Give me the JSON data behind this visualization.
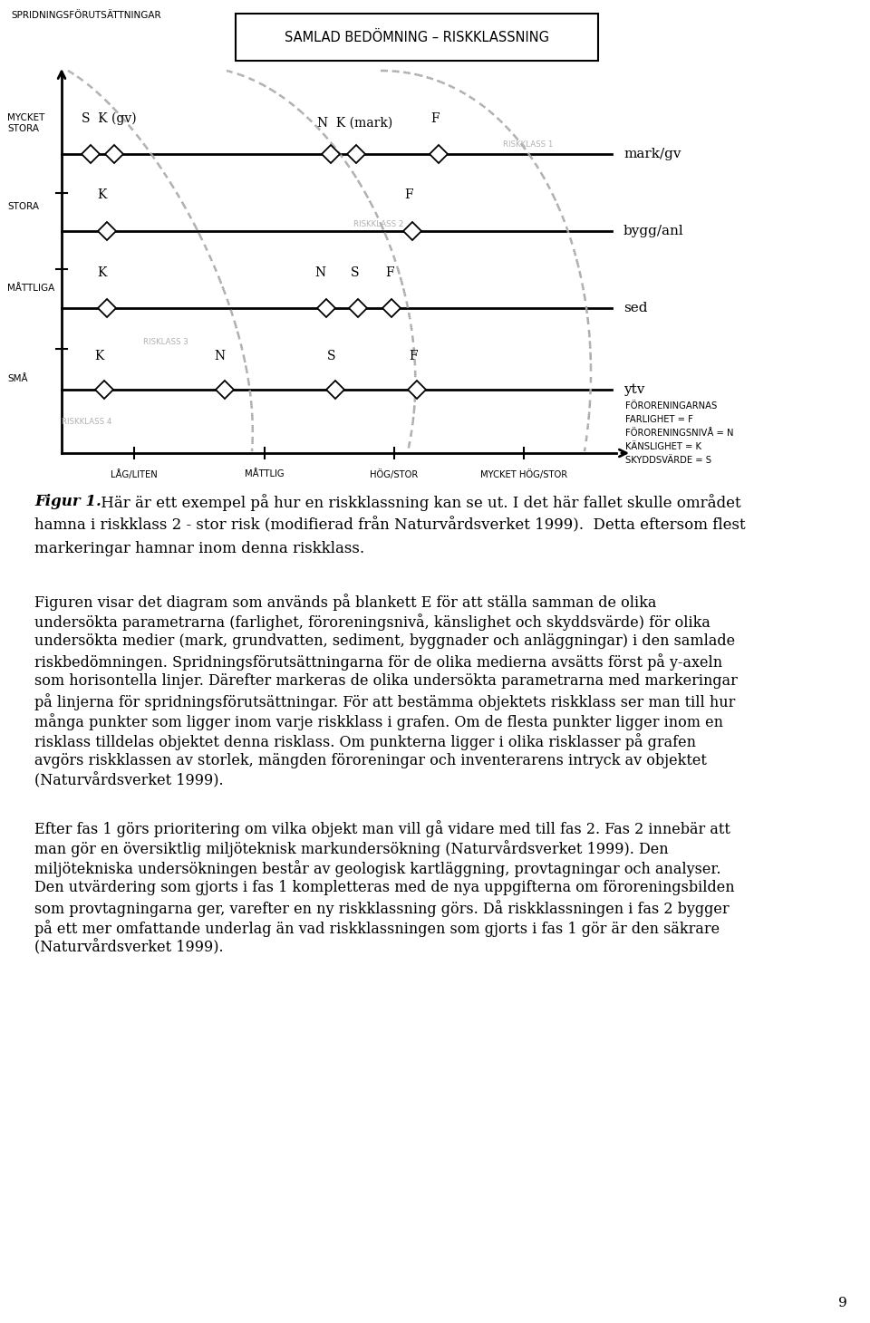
{
  "title_box": "SAMLAD BEDÖMNING – RISKKLASSNING",
  "ylabel_top": "SPRIDNINGSFÖRUTSÄTTNINGAR",
  "y_labels_left": [
    [
      "MYCKET\nSTORA",
      148
    ],
    [
      "STORA",
      240
    ],
    [
      "MÅTTLIGA",
      330
    ],
    [
      "SMÅ",
      430
    ]
  ],
  "x_labels_bottom": [
    [
      "LÅG/LITEN",
      148
    ],
    [
      "MÅTTLIG",
      292
    ],
    [
      "HÖG/STOR",
      435
    ],
    [
      "MYCKET HÖG/STOR",
      578
    ]
  ],
  "row_labels_right": [
    [
      "mark/gv",
      170
    ],
    [
      "bygg/anl",
      255
    ],
    [
      "sed",
      340
    ],
    [
      "ytv",
      430
    ]
  ],
  "riskklass_labels": [
    [
      "RISKKLASS 1",
      555,
      160
    ],
    [
      "RISKKLASS 2",
      390,
      248
    ],
    [
      "RISKLASS 3",
      158,
      378
    ],
    [
      "RISKKLASS 4",
      68,
      465
    ]
  ],
  "legend_lines": [
    "FÖRORENINGARNAS",
    "FARLIGHET = F",
    "FÖRORENINGSNIVÅ = N",
    "KÄNSLIGHET = K",
    "SKYDDSVÄRDE = S"
  ],
  "page_number": "9",
  "bg_color": "#ffffff"
}
